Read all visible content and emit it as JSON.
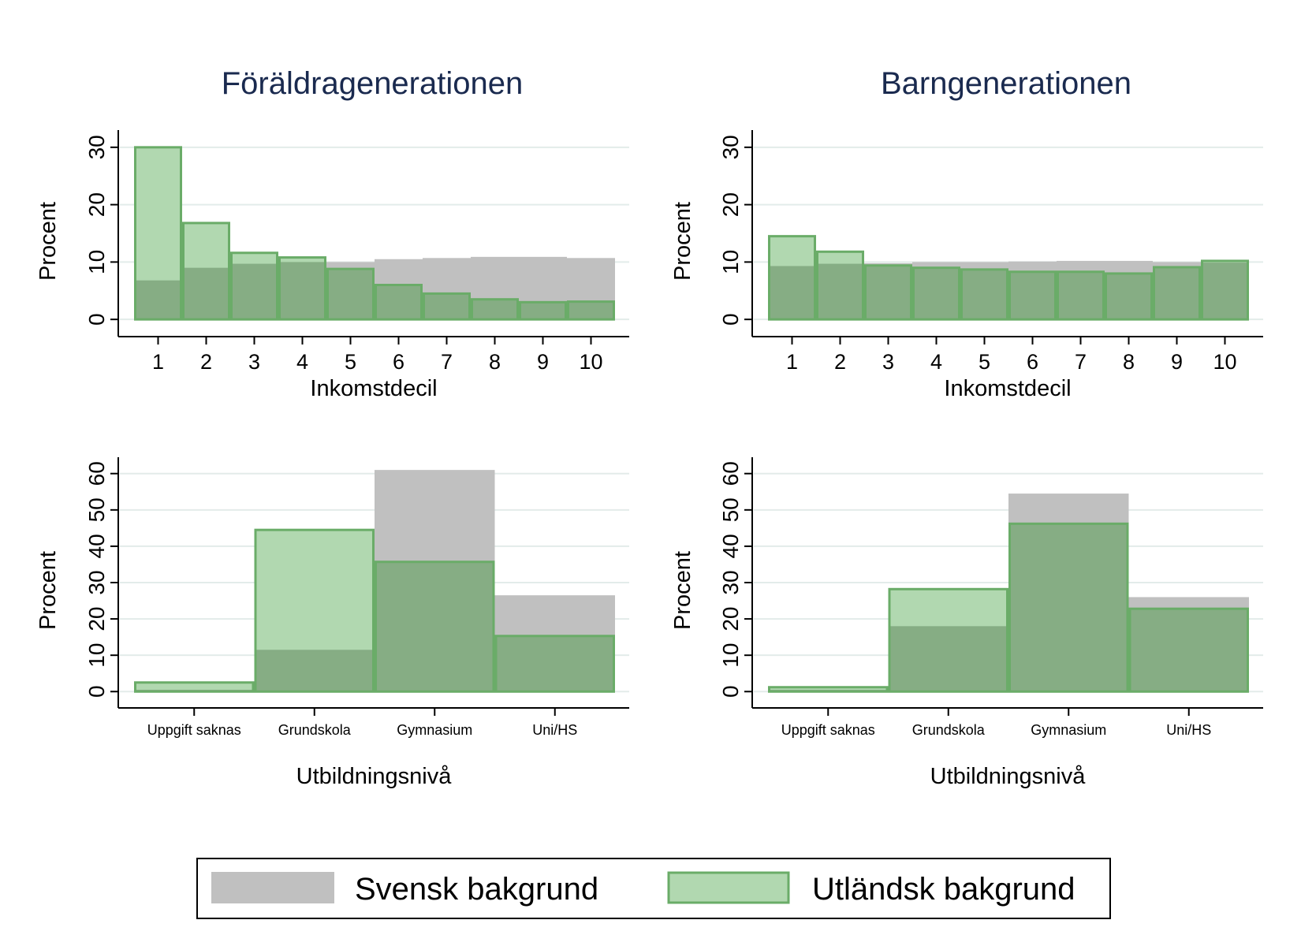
{
  "colors": {
    "svensk": "#c0c0c0",
    "utlandsk_fill": "#b1d8b0",
    "overlap": "#86ad84",
    "utlandsk_stroke": "#6aac68",
    "title": "#1a2a4f",
    "grid": "#e3ecea"
  },
  "columns": [
    {
      "title": "Föräldragenerationen"
    },
    {
      "title": "Barngenerationen"
    }
  ],
  "legend": {
    "items": [
      {
        "label": "Svensk bakgrund",
        "color": "#c0c0c0"
      },
      {
        "label": "Utländsk bakgrund",
        "color": "#b1d8b0"
      }
    ]
  },
  "chart_data": [
    {
      "type": "bar",
      "title": "Föräldragenerationen",
      "xlabel": "Inkomstdecil",
      "ylabel": "Procent",
      "categories": [
        "1",
        "2",
        "3",
        "4",
        "5",
        "6",
        "7",
        "8",
        "9",
        "10"
      ],
      "yticks": [
        0,
        10,
        20,
        30
      ],
      "ylim": [
        -3,
        33
      ],
      "series": [
        {
          "name": "Svensk bakgrund",
          "values": [
            6.8,
            9.0,
            9.7,
            10.0,
            10.0,
            10.5,
            10.7,
            10.9,
            10.9,
            10.7
          ]
        },
        {
          "name": "Utländsk bakgrund",
          "values": [
            30.0,
            16.8,
            11.6,
            10.8,
            8.8,
            6.0,
            4.5,
            3.5,
            3.0,
            3.1
          ]
        }
      ],
      "grid": true
    },
    {
      "type": "bar",
      "title": "Barngenerationen",
      "xlabel": "Inkomstdecil",
      "ylabel": "Procent",
      "categories": [
        "1",
        "2",
        "3",
        "4",
        "5",
        "6",
        "7",
        "8",
        "9",
        "10"
      ],
      "yticks": [
        0,
        10,
        20,
        30
      ],
      "ylim": [
        -3,
        33
      ],
      "series": [
        {
          "name": "Svensk bakgrund",
          "values": [
            9.3,
            9.7,
            9.8,
            10.0,
            10.0,
            10.1,
            10.2,
            10.2,
            10.0,
            9.9
          ]
        },
        {
          "name": "Utländsk bakgrund",
          "values": [
            14.5,
            11.8,
            9.4,
            9.0,
            8.7,
            8.3,
            8.3,
            8.0,
            9.1,
            10.2
          ]
        }
      ],
      "grid": true
    },
    {
      "type": "bar",
      "title": "Föräldragenerationen",
      "xlabel": "Utbildningsnivå",
      "ylabel": "Procent",
      "categories": [
        "Uppgift saknas",
        "Grundskola",
        "Gymnasium",
        "Uni/HS"
      ],
      "yticks": [
        0,
        10,
        20,
        30,
        40,
        50,
        60
      ],
      "ylim": [
        -4.5,
        64.5
      ],
      "series": [
        {
          "name": "Svensk bakgrund",
          "values": [
            0.5,
            11.5,
            61.0,
            26.5
          ]
        },
        {
          "name": "Utländsk bakgrund",
          "values": [
            2.5,
            44.5,
            35.7,
            15.3
          ]
        }
      ],
      "grid": true
    },
    {
      "type": "bar",
      "title": "Barngenerationen",
      "xlabel": "Utbildningsnivå",
      "ylabel": "Procent",
      "categories": [
        "Uppgift saknas",
        "Grundskola",
        "Gymnasium",
        "Uni/HS"
      ],
      "yticks": [
        0,
        10,
        20,
        30,
        40,
        50,
        60
      ],
      "ylim": [
        -4.5,
        64.5
      ],
      "series": [
        {
          "name": "Svensk bakgrund",
          "values": [
            0.5,
            18.0,
            54.5,
            26.0
          ]
        },
        {
          "name": "Utländsk bakgrund",
          "values": [
            1.2,
            28.2,
            46.2,
            22.8
          ]
        }
      ],
      "grid": true
    }
  ]
}
